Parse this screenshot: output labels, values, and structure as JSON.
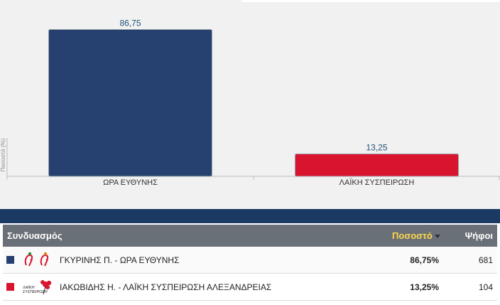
{
  "chart_data": {
    "type": "bar",
    "categories": [
      "ΩΡΑ ΕΥΘΥΝΗΣ",
      "ΛΑΪΚΗ ΣΥΣΠΕΙΡΩΣΗ"
    ],
    "values": [
      86.75,
      13.25
    ],
    "value_labels": [
      "86,75",
      "13,25"
    ],
    "colors": [
      "#26416f",
      "#d9142e"
    ],
    "ylabel": "Ποσοστό (%)",
    "ylim": [
      0,
      100
    ],
    "grid": false
  },
  "table": {
    "headers": {
      "coalition": "Συνδυασμός",
      "percent": "Ποσοστό",
      "votes": "Ψήφοι"
    },
    "rows": [
      {
        "name": "ΓΚΥΡΙΝΗΣ Π. - ΩΡΑ ΕΥΘΥΝΗΣ",
        "percent": "86,75%",
        "votes": "681",
        "color": "#26416f",
        "logo_icon": "ora-eythynis-logo-icon"
      },
      {
        "name": "ΙΑΚΩΒΙΔΗΣ Η. - ΛΑΪΚΗ ΣΥΣΠΕΙΡΩΣΗ ΑΛΕΞΑΝΔΡΕΙΑΣ",
        "percent": "13,25%",
        "votes": "104",
        "color": "#d9142e",
        "logo_icon": "laiki-syspeirosi-logo-icon",
        "logo_text": "ΛΑΪΚΗ ΣΥΣΠΕΙΡΩΣΗ"
      }
    ]
  }
}
